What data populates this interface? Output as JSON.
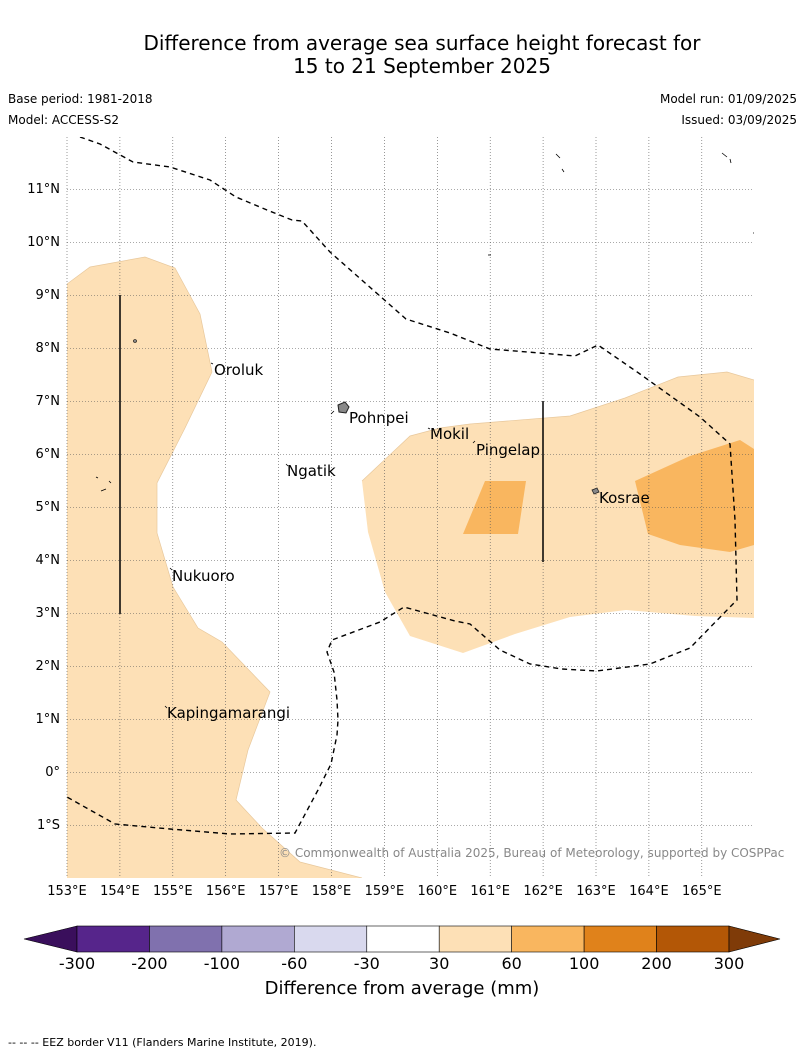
{
  "title_line1": "Difference from average sea surface height forecast for",
  "title_line2": "15 to 21 September 2025",
  "base_period": "Base period: 1981-2018",
  "model": "Model: ACCESS-S2",
  "model_run": "Model run: 01/09/2025",
  "issued": "Issued: 03/09/2025",
  "lat_labels": [
    "11°N",
    "10°N",
    "9°N",
    "8°N",
    "7°N",
    "6°N",
    "5°N",
    "4°N",
    "3°N",
    "2°N",
    "1°N",
    "0°",
    "1°S"
  ],
  "lon_labels": [
    "153°E",
    "154°E",
    "155°E",
    "156°E",
    "157°E",
    "158°E",
    "159°E",
    "160°E",
    "161°E",
    "162°E",
    "163°E",
    "164°E",
    "165°E"
  ],
  "places": {
    "oroluk": "Oroluk",
    "pohnpei": "Pohnpei",
    "mokil": "Mokil",
    "pingelap": "Pingelap",
    "ngatik": "Ngatik",
    "kosrae": "Kosrae",
    "nukuoro": "Nukuoro",
    "kapingamarangi": "Kapingamarangi"
  },
  "copyright": "© Commonwealth of Australia 2025, Bureau of Meteorology, supported by COSPPac",
  "colorbar": {
    "ticks": [
      "-300",
      "-200",
      "-100",
      "-60",
      "-30",
      "30",
      "60",
      "100",
      "200",
      "300"
    ],
    "colors": [
      "#3a0f5c",
      "#56258b",
      "#8071ae",
      "#b0a9d2",
      "#d9d9ee",
      "#ffffff",
      "#fde0b6",
      "#f9b65f",
      "#e0821b",
      "#b35706",
      "#7f3b08"
    ],
    "title": "Difference from average (mm)"
  },
  "footer": "--  --  -- EEZ border V11 (Flanders Marine Institute, 2019)."
}
